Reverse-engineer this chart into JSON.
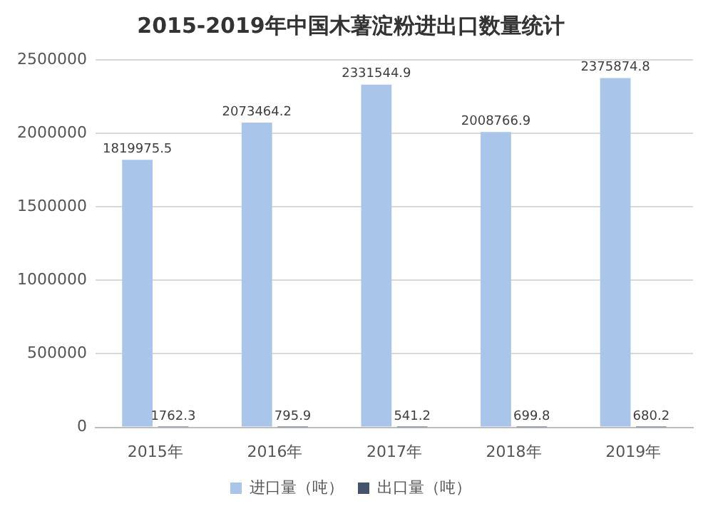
{
  "chart_data": {
    "type": "bar",
    "title": "2015-2019年中国木薯淀粉进出口数量统计",
    "categories": [
      "2015年",
      "2016年",
      "2017年",
      "2018年",
      "2019年"
    ],
    "series": [
      {
        "name": "进口量（吨）",
        "color": "#a9c5ea",
        "values": [
          1819975.5,
          2073464.2,
          2331544.9,
          2008766.9,
          2375874.8
        ]
      },
      {
        "name": "出口量（吨）",
        "color": "#44546a",
        "values": [
          1762.3,
          795.9,
          541.2,
          699.8,
          680.2
        ]
      }
    ],
    "ylim": [
      0,
      2500000
    ],
    "yticks": [
      0,
      500000,
      1000000,
      1500000,
      2000000,
      2500000
    ],
    "grid": "y",
    "legend": "bottom",
    "data_labels": true
  }
}
